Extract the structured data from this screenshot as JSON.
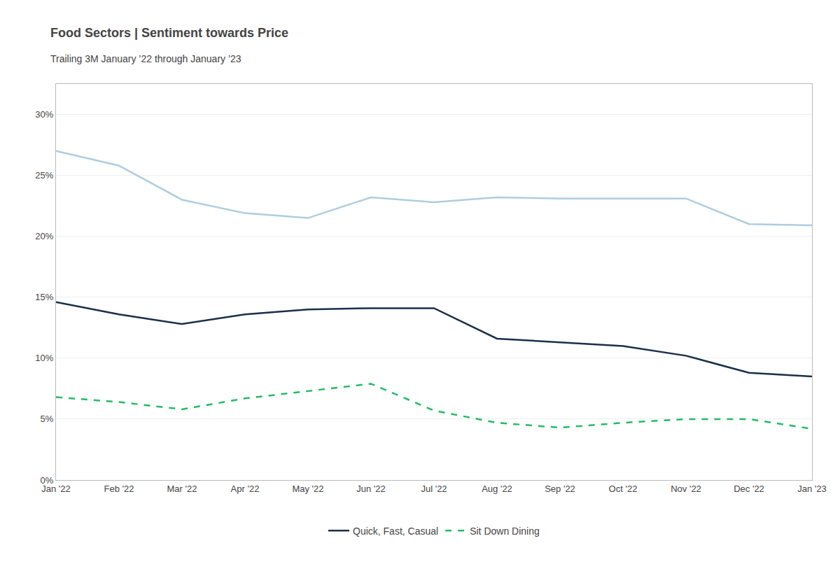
{
  "chart_data": {
    "type": "line",
    "title": "Food Sectors | Sentiment towards Price",
    "subtitle": "Trailing 3M January ’22 through January ’23",
    "categories": [
      "Jan '22",
      "Feb '22",
      "Mar '22",
      "Apr '22",
      "May '22",
      "Jun '22",
      "Jul '22",
      "Aug '22",
      "Sep '22",
      "Oct '22",
      "Nov '22",
      "Dec '22",
      "Jan '23"
    ],
    "series": [
      {
        "color": "#aecde0",
        "line_style": "solid",
        "values": [
          0.27,
          0.258,
          0.23,
          0.219,
          0.215,
          0.232,
          0.228,
          0.232,
          0.231,
          0.231,
          0.231,
          0.21,
          0.209
        ]
      },
      {
        "name": "Quick, Fast, Casual",
        "color": "#1a2f4a",
        "line_style": "solid",
        "values": [
          0.146,
          0.136,
          0.128,
          0.136,
          0.14,
          0.141,
          0.141,
          0.116,
          0.113,
          0.11,
          0.102,
          0.088,
          0.085
        ]
      },
      {
        "name": "Sit Down Dining",
        "color": "#22bb66",
        "line_style": "dashed",
        "values": [
          0.068,
          0.064,
          0.058,
          0.067,
          0.073,
          0.079,
          0.057,
          0.047,
          0.043,
          0.047,
          0.05,
          0.05,
          0.042
        ]
      }
    ],
    "ylim": [
      0,
      0.325
    ],
    "yticks": [
      {
        "value": 0.0,
        "label": "0%"
      },
      {
        "value": 0.05,
        "label": "5%"
      },
      {
        "value": 0.1,
        "label": "10%"
      },
      {
        "value": 0.15,
        "label": "15%"
      },
      {
        "value": 0.2,
        "label": "20%"
      },
      {
        "value": 0.25,
        "label": "25%"
      },
      {
        "value": 0.3,
        "label": "30%"
      }
    ],
    "grid": true,
    "legend": "bottom"
  }
}
